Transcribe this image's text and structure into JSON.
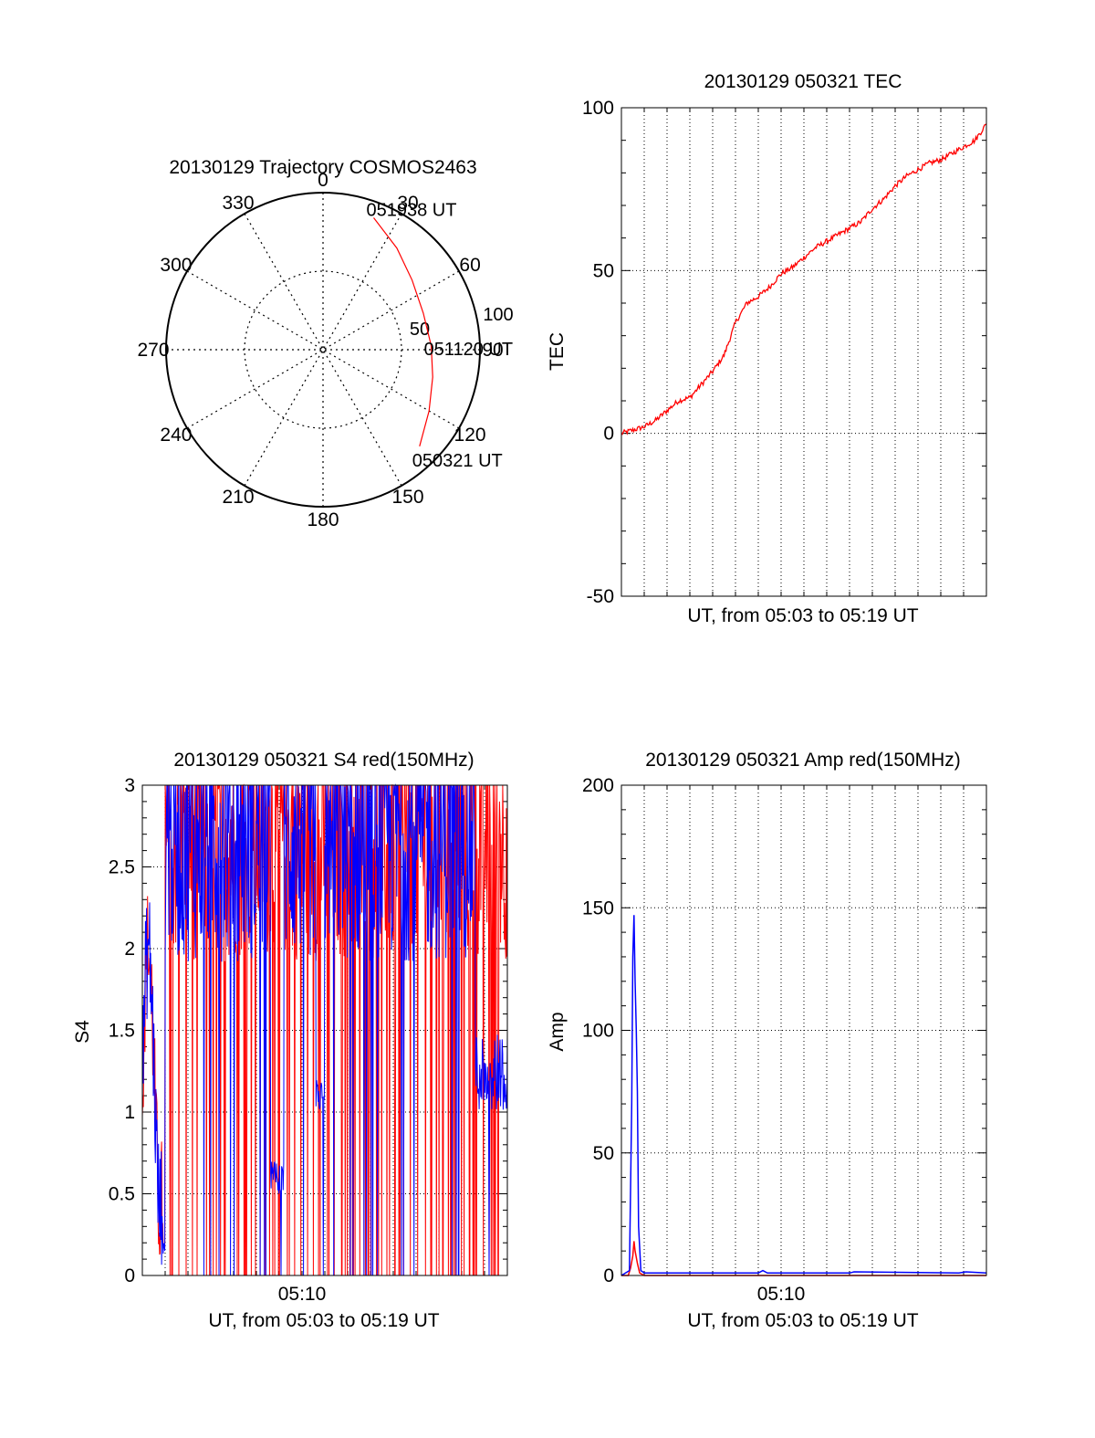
{
  "colors": {
    "red": "#ff0000",
    "blue": "#0000ff",
    "grid": "#000000",
    "frame": "#000000"
  },
  "chart_data": [
    {
      "id": "polar",
      "type": "scatter",
      "subtype": "polar-trajectory",
      "title": "20130129 Trajectory COSMOS2463",
      "angle_labels": [
        "0",
        "30",
        "60",
        "90",
        "120",
        "150",
        "180",
        "210",
        "240",
        "270",
        "300",
        "330"
      ],
      "radial_labels": [
        "50",
        "100"
      ],
      "radial_range": [
        0,
        100
      ],
      "track": [
        {
          "azimuth": 21,
          "radial": 90
        },
        {
          "azimuth": 36,
          "radial": 80
        },
        {
          "azimuth": 52,
          "radial": 72
        },
        {
          "azimuth": 70,
          "radial": 68
        },
        {
          "azimuth": 88,
          "radial": 69
        },
        {
          "azimuth": 104,
          "radial": 72
        },
        {
          "azimuth": 120,
          "radial": 78
        },
        {
          "azimuth": 135,
          "radial": 87
        }
      ],
      "annotations": [
        {
          "text": "051938 UT",
          "at_track_point": 0
        },
        {
          "text": "051120 UT",
          "at_track_point": 4
        },
        {
          "text": "050321 UT",
          "at_track_point": 7
        }
      ],
      "series": [
        {
          "name": "",
          "color": "red"
        }
      ]
    },
    {
      "id": "tec",
      "type": "line",
      "title": "20130129 050321 TEC",
      "xlabel": "UT, from 05:03 to 05:19 UT",
      "ylabel": "TEC",
      "xlim": [
        0,
        16
      ],
      "ylim": [
        -50,
        100
      ],
      "yticks": [
        "-50",
        "0",
        "50",
        "100"
      ],
      "xtick_minor_count": 16,
      "series": [
        {
          "name": "",
          "color": "red",
          "x": [
            0,
            0.5,
            1,
            1.5,
            2,
            2.5,
            3,
            3.5,
            4,
            4.5,
            5,
            5.5,
            6,
            6.5,
            7,
            7.5,
            8,
            8.5,
            9,
            9.5,
            10,
            10.5,
            11,
            11.5,
            12,
            12.5,
            13,
            13.5,
            14,
            14.5,
            15,
            15.5,
            16
          ],
          "y": [
            0,
            1,
            2,
            4,
            7,
            10,
            11,
            15,
            19,
            24,
            34,
            40,
            42,
            45,
            49,
            51,
            54,
            57,
            59,
            61,
            63,
            65,
            69,
            72,
            76,
            79,
            81,
            83,
            84,
            86,
            88,
            90,
            95
          ]
        }
      ]
    },
    {
      "id": "s4",
      "type": "line",
      "title": "20130129 050321 S4 red(150MHz)",
      "xlabel": "UT, from 05:03 to 05:19 UT",
      "ylabel": "S4",
      "xlim": [
        0,
        16
      ],
      "ylim": [
        0,
        3
      ],
      "yticks": [
        "0",
        "0.5",
        "1",
        "1.5",
        "2",
        "2.5",
        "3"
      ],
      "xtick_labels": [
        {
          "x": 7,
          "label": "05:10"
        }
      ],
      "series": [
        {
          "name": "",
          "color": "red"
        },
        {
          "name": "",
          "color": "blue"
        }
      ]
    },
    {
      "id": "amp",
      "type": "line",
      "title": "20130129 050321 Amp red(150MHz)",
      "xlabel": "UT, from 05:03 to 05:19 UT",
      "ylabel": "Amp",
      "xlim": [
        0,
        16
      ],
      "ylim": [
        0,
        200
      ],
      "yticks": [
        "0",
        "50",
        "100",
        "150",
        "200"
      ],
      "xtick_labels": [
        {
          "x": 7,
          "label": "05:10"
        }
      ],
      "series": [
        {
          "name": "",
          "color": "red",
          "x": [
            0,
            0.3,
            0.4,
            0.5,
            0.55,
            0.6,
            0.7,
            0.8,
            1.0,
            16
          ],
          "y": [
            0,
            0,
            3,
            8,
            14,
            10,
            5,
            1,
            0,
            0
          ]
        },
        {
          "name": "",
          "color": "blue",
          "x": [
            0,
            0.35,
            0.45,
            0.5,
            0.55,
            0.6,
            0.65,
            0.7,
            0.75,
            0.85,
            1.0,
            6.0,
            6.2,
            6.4,
            10.0,
            10.2,
            14.8,
            15.1,
            16
          ],
          "y": [
            0,
            2,
            70,
            130,
            147,
            120,
            100,
            75,
            20,
            2,
            1,
            1,
            2,
            1,
            1,
            1.5,
            1,
            1.5,
            1
          ]
        }
      ]
    }
  ]
}
